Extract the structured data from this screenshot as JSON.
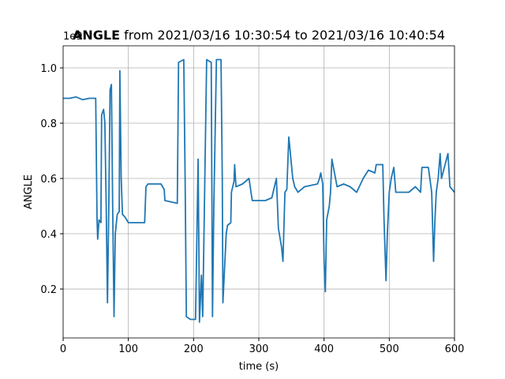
{
  "chart_data": {
    "type": "line",
    "title": {
      "bold": "ANGLE",
      "text": "from 2021/03/16 10:30:54 to 2021/03/16 10:40:54"
    },
    "x_label": "time (s)",
    "y_label": "ANGLE",
    "y_offset": "1e9",
    "x": [
      0,
      10,
      20,
      30,
      40,
      50,
      52,
      53,
      55,
      58,
      59,
      62,
      64,
      66,
      68,
      70,
      72,
      74,
      76,
      78,
      80,
      83,
      86,
      87,
      89,
      91,
      95,
      100,
      120,
      125,
      127,
      130,
      150,
      155,
      156,
      175,
      177,
      185,
      187,
      189,
      195,
      203,
      207,
      209,
      212,
      214,
      220,
      227,
      229,
      231,
      235,
      242,
      244,
      245,
      250,
      252,
      257,
      258,
      262,
      263,
      265,
      275,
      285,
      288,
      290,
      310,
      320,
      327,
      330,
      335,
      337,
      340,
      343,
      346,
      348,
      352,
      355,
      360,
      370,
      390,
      393,
      395,
      398,
      400,
      402,
      404,
      408,
      410,
      412,
      416,
      420,
      430,
      440,
      450,
      460,
      468,
      478,
      480,
      490,
      492,
      495,
      497,
      500,
      503,
      507,
      510,
      530,
      540,
      548,
      550,
      560,
      565,
      568,
      570,
      572,
      575,
      578,
      580,
      590,
      593,
      600
    ],
    "series": [
      {
        "name": "ANGLE",
        "color": "#1f77b4",
        "values": [
          0.89,
          0.89,
          0.895,
          0.885,
          0.89,
          0.89,
          0.45,
          0.38,
          0.45,
          0.44,
          0.83,
          0.85,
          0.8,
          0.5,
          0.15,
          0.5,
          0.92,
          0.94,
          0.5,
          0.1,
          0.4,
          0.47,
          0.48,
          0.99,
          0.6,
          0.47,
          0.46,
          0.44,
          0.44,
          0.44,
          0.57,
          0.58,
          0.58,
          0.56,
          0.52,
          0.51,
          1.02,
          1.03,
          0.6,
          0.1,
          0.09,
          0.09,
          0.67,
          0.08,
          0.25,
          0.1,
          1.03,
          1.02,
          0.1,
          0.5,
          1.03,
          1.03,
          0.6,
          0.15,
          0.4,
          0.43,
          0.44,
          0.55,
          0.59,
          0.65,
          0.57,
          0.58,
          0.6,
          0.55,
          0.52,
          0.52,
          0.53,
          0.6,
          0.42,
          0.35,
          0.3,
          0.55,
          0.56,
          0.75,
          0.7,
          0.6,
          0.57,
          0.55,
          0.57,
          0.58,
          0.6,
          0.62,
          0.58,
          0.3,
          0.19,
          0.45,
          0.5,
          0.55,
          0.67,
          0.62,
          0.57,
          0.58,
          0.57,
          0.55,
          0.6,
          0.63,
          0.62,
          0.65,
          0.65,
          0.45,
          0.23,
          0.4,
          0.55,
          0.6,
          0.64,
          0.55,
          0.55,
          0.57,
          0.55,
          0.64,
          0.64,
          0.55,
          0.3,
          0.45,
          0.55,
          0.6,
          0.69,
          0.6,
          0.69,
          0.57,
          0.55
        ]
      }
    ],
    "xlim": [
      0,
      600
    ],
    "ylim": [
      0.023,
      1.08
    ],
    "xticks": [
      0,
      100,
      200,
      300,
      400,
      500,
      600
    ],
    "yticks": [
      0.2,
      0.4,
      0.6,
      0.8,
      {
        "value": 1,
        "label": "1.0"
      }
    ],
    "grid": true
  }
}
